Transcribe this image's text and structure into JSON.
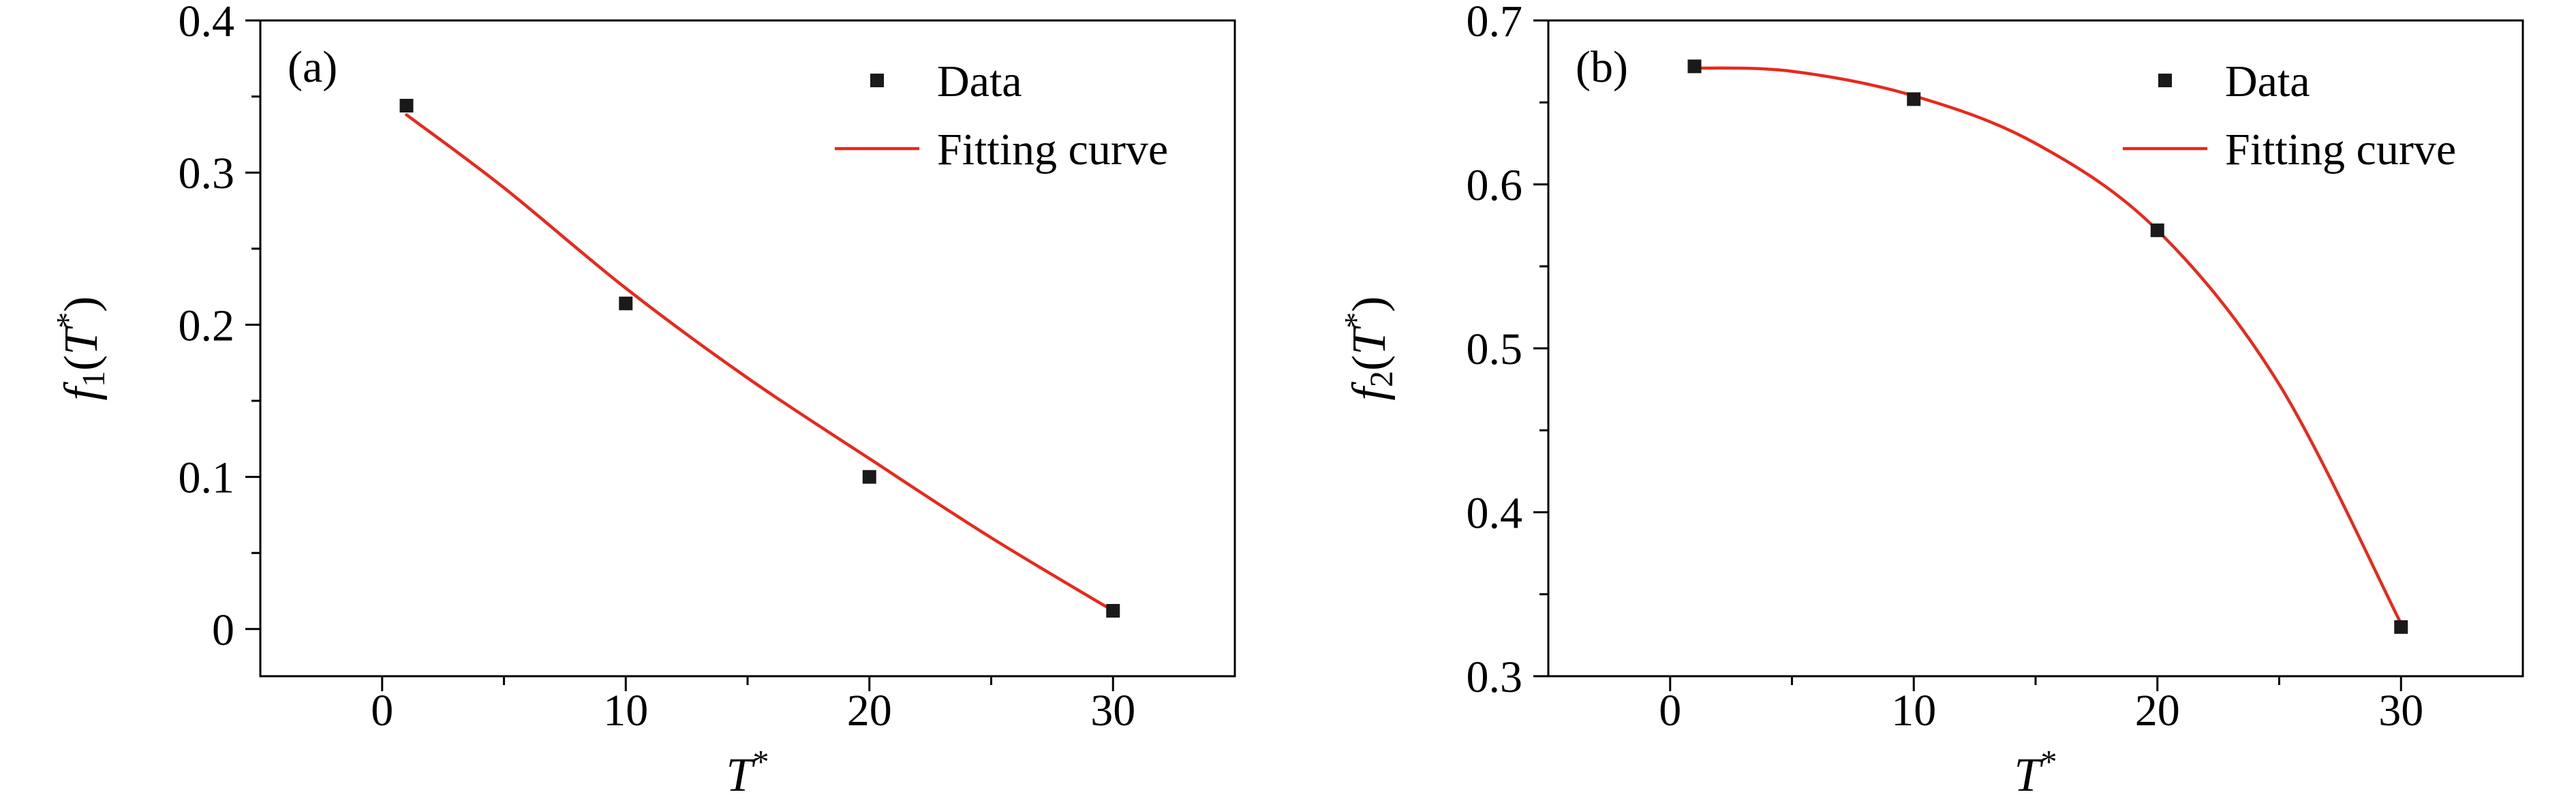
{
  "figure": {
    "background": "#ffffff",
    "text_color": "#000000",
    "marker_color": "#1a1a1a",
    "curve_color": "#e8291c"
  },
  "chart_data": [
    {
      "type": "scatter",
      "panel_label": "(a)",
      "xlabel": "T*",
      "ylabel": "f1(T*)",
      "xlabel_parts": [
        {
          "t": "T",
          "s": "i"
        },
        {
          "t": "*",
          "s": "sup"
        }
      ],
      "ylabel_parts": [
        {
          "t": "f",
          "s": "i"
        },
        {
          "t": "1",
          "s": "sub"
        },
        {
          "t": "(",
          "s": "n"
        },
        {
          "t": "T",
          "s": "i"
        },
        {
          "t": "*",
          "s": "sup"
        },
        {
          "t": ")",
          "s": "n"
        }
      ],
      "xlim": [
        -5,
        35
      ],
      "ylim": [
        -0.031,
        0.4
      ],
      "xticks": [
        0,
        10,
        20,
        30
      ],
      "xtick_labels": [
        "0",
        "10",
        "20",
        "30"
      ],
      "yticks": [
        0,
        0.1,
        0.2,
        0.3,
        0.4
      ],
      "ytick_labels": [
        "0",
        "0.1",
        "0.2",
        "0.3",
        "0.4"
      ],
      "x_minor_step": 5,
      "y_minor_step": 0.05,
      "grid": false,
      "legend_position": "upper right",
      "legend": [
        {
          "label": "Data",
          "sample": "marker"
        },
        {
          "label": "Fitting curve",
          "sample": "line"
        }
      ],
      "series": [
        {
          "name": "Data",
          "kind": "points",
          "marker": "square",
          "points": [
            [
              1,
              0.344
            ],
            [
              10,
              0.214
            ],
            [
              20,
              0.1
            ],
            [
              30,
              0.012
            ]
          ]
        },
        {
          "name": "Fitting curve",
          "kind": "curve",
          "x": [
            1,
            5,
            10,
            15,
            20,
            25,
            30
          ],
          "y": [
            0.338,
            0.29,
            0.224,
            0.165,
            0.112,
            0.06,
            0.012
          ]
        }
      ]
    },
    {
      "type": "scatter",
      "panel_label": "(b)",
      "xlabel": "T*",
      "ylabel": "f2(T*)",
      "xlabel_parts": [
        {
          "t": "T",
          "s": "i"
        },
        {
          "t": "*",
          "s": "sup"
        }
      ],
      "ylabel_parts": [
        {
          "t": "f",
          "s": "i"
        },
        {
          "t": "2",
          "s": "sub"
        },
        {
          "t": "(",
          "s": "n"
        },
        {
          "t": "T",
          "s": "i"
        },
        {
          "t": "*",
          "s": "sup"
        },
        {
          "t": ")",
          "s": "n"
        }
      ],
      "xlim": [
        -5,
        35
      ],
      "ylim": [
        0.3,
        0.7
      ],
      "xticks": [
        0,
        10,
        20,
        30
      ],
      "xtick_labels": [
        "0",
        "10",
        "20",
        "30"
      ],
      "yticks": [
        0.3,
        0.4,
        0.5,
        0.6,
        0.7
      ],
      "ytick_labels": [
        "0.3",
        "0.4",
        "0.5",
        "0.6",
        "0.7"
      ],
      "x_minor_step": 5,
      "y_minor_step": 0.05,
      "grid": false,
      "legend_position": "upper right",
      "legend": [
        {
          "label": "Data",
          "sample": "marker"
        },
        {
          "label": "Fitting curve",
          "sample": "line"
        }
      ],
      "series": [
        {
          "name": "Data",
          "kind": "points",
          "marker": "square",
          "points": [
            [
              1,
              0.672
            ],
            [
              10,
              0.652
            ],
            [
              20,
              0.572
            ],
            [
              30,
              0.33
            ]
          ]
        },
        {
          "name": "Fitting curve",
          "kind": "curve",
          "x": [
            1,
            5,
            10,
            15,
            20,
            25,
            30
          ],
          "y": [
            0.671,
            0.669,
            0.654,
            0.625,
            0.572,
            0.478,
            0.332
          ]
        }
      ]
    }
  ]
}
